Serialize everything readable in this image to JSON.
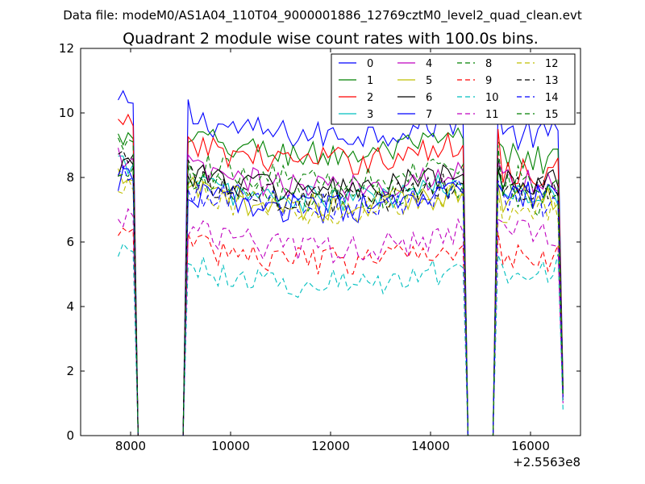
{
  "header": {
    "data_file": "Data file: modeM0/AS1A04_110T04_9000001886_12769cztM0_level2_quad_clean.evt"
  },
  "chart_data": {
    "type": "line",
    "title": "Quadrant 2 module wise count rates with 100.0s bins.",
    "xlabel": "",
    "ylabel": "",
    "x_offset_label": "+2.5563e8",
    "xlim": [
      7000,
      17000
    ],
    "ylim": [
      0,
      12
    ],
    "x_ticks": [
      8000,
      10000,
      12000,
      14000,
      16000
    ],
    "x_tick_labels": [
      "8000",
      "10000",
      "12000",
      "14000",
      "16000"
    ],
    "y_ticks": [
      0,
      2,
      4,
      6,
      8,
      10,
      12
    ],
    "y_tick_labels": [
      "0",
      "2",
      "4",
      "6",
      "8",
      "10",
      "12"
    ],
    "grid": false,
    "legend_position": "top-right",
    "legend_columns": 4,
    "segments": [
      {
        "start": 7750,
        "end": 8050
      },
      {
        "start": 9150,
        "end": 14650
      },
      {
        "start": 15350,
        "end": 16650
      }
    ],
    "gaps_zero": [
      [
        8150,
        9050
      ],
      [
        14750,
        15250
      ]
    ],
    "bin_seconds": 100,
    "series": [
      {
        "name": "0",
        "color": "#0000ff",
        "dash": "solid",
        "level": 9.6,
        "edge": 10.5,
        "end_level": 9.3,
        "last": 1.6
      },
      {
        "name": "1",
        "color": "#008000",
        "dash": "solid",
        "level": 9.0,
        "edge": 9.4,
        "end_level": 8.6,
        "last": 1.4
      },
      {
        "name": "2",
        "color": "#ff0000",
        "dash": "solid",
        "level": 8.8,
        "edge": 9.8,
        "end_level": 8.2,
        "last": 1.5
      },
      {
        "name": "3",
        "color": "#00bfbf",
        "dash": "solid",
        "level": 7.6,
        "edge": 8.6,
        "end_level": 7.6,
        "last": 1.2
      },
      {
        "name": "4",
        "color": "#bf00bf",
        "dash": "solid",
        "level": 8.0,
        "edge": 8.8,
        "end_level": 7.9,
        "last": 1.3
      },
      {
        "name": "5",
        "color": "#bfbf00",
        "dash": "solid",
        "level": 7.4,
        "edge": 8.1,
        "end_level": 7.4,
        "last": 1.2
      },
      {
        "name": "6",
        "color": "#000000",
        "dash": "solid",
        "level": 7.9,
        "edge": 8.6,
        "end_level": 7.8,
        "last": 1.3
      },
      {
        "name": "7",
        "color": "#0000ff",
        "dash": "solid",
        "level": 7.3,
        "edge": 8.1,
        "end_level": 7.4,
        "last": 1.1
      },
      {
        "name": "8",
        "color": "#008000",
        "dash": "dashed",
        "level": 7.6,
        "edge": 8.5,
        "end_level": 7.3,
        "last": 1.2
      },
      {
        "name": "9",
        "color": "#ff0000",
        "dash": "dashed",
        "level": 5.7,
        "edge": 6.6,
        "end_level": 5.6,
        "last": 1.1
      },
      {
        "name": "10",
        "color": "#00bfbf",
        "dash": "dashed",
        "level": 5.0,
        "edge": 5.9,
        "end_level": 5.2,
        "last": 0.8
      },
      {
        "name": "11",
        "color": "#bf00bf",
        "dash": "dashed",
        "level": 6.1,
        "edge": 7.0,
        "end_level": 6.3,
        "last": 1.0
      },
      {
        "name": "12",
        "color": "#bfbf00",
        "dash": "dashed",
        "level": 7.3,
        "edge": 7.8,
        "end_level": 7.0,
        "last": 1.2
      },
      {
        "name": "13",
        "color": "#000000",
        "dash": "dashed",
        "level": 7.6,
        "edge": 8.9,
        "end_level": 7.6,
        "last": 1.3
      },
      {
        "name": "14",
        "color": "#0000ff",
        "dash": "dashed",
        "level": 7.4,
        "edge": 8.2,
        "end_level": 7.3,
        "last": 1.2
      },
      {
        "name": "15",
        "color": "#008000",
        "dash": "dashed",
        "level": 8.2,
        "edge": 9.3,
        "end_level": 7.9,
        "last": 1.3
      }
    ]
  }
}
